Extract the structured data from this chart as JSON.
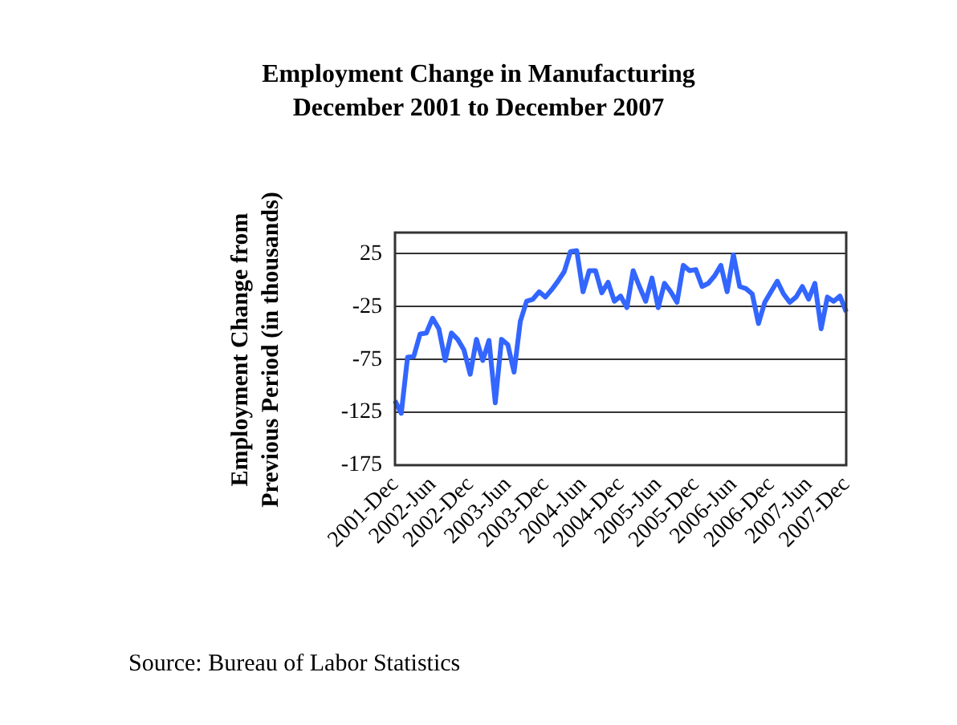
{
  "chart_data": {
    "type": "line",
    "title": "Employment Change in Manufacturing December 2001 to December 2007",
    "ylabel": "Employment Change from Previous Period (in thousands)",
    "categories": [
      "2001-Dec",
      null,
      null,
      null,
      null,
      null,
      "2002-Jun",
      null,
      null,
      null,
      null,
      null,
      "2002-Dec",
      null,
      null,
      null,
      null,
      null,
      "2003-Jun",
      null,
      null,
      null,
      null,
      null,
      "2003-Dec",
      null,
      null,
      null,
      null,
      null,
      "2004-Jun",
      null,
      null,
      null,
      null,
      null,
      "2004-Dec",
      null,
      null,
      null,
      null,
      null,
      "2005-Jun",
      null,
      null,
      null,
      null,
      null,
      "2005-Dec",
      null,
      null,
      null,
      null,
      null,
      "2006-Jun",
      null,
      null,
      null,
      null,
      null,
      "2006-Dec",
      null,
      null,
      null,
      null,
      null,
      "2007-Jun",
      null,
      null,
      null,
      null,
      null,
      "2007-Dec"
    ],
    "series": [
      {
        "color": "#3366ff",
        "values": [
          -114,
          -126,
          -73,
          -72,
          -51,
          -50,
          -36,
          -46,
          -76,
          -50,
          -56,
          -66,
          -89,
          -56,
          -76,
          -57,
          -116,
          -56,
          -61,
          -87,
          -39,
          -20,
          -18,
          -11,
          -16,
          -9,
          -1,
          8,
          27,
          28,
          -11,
          9,
          9,
          -12,
          -2,
          -20,
          -15,
          -26,
          9,
          -6,
          -20,
          2,
          -26,
          -3,
          -11,
          -21,
          14,
          9,
          10,
          -6,
          -3,
          4,
          14,
          -11,
          24,
          -6,
          -8,
          -13,
          -41,
          -21,
          -11,
          -1,
          -13,
          -21,
          -16,
          -6,
          -18,
          -3,
          -46,
          -16,
          -20,
          -15,
          -30
        ]
      }
    ],
    "ylim": [
      -175,
      45
    ],
    "yticks": [
      -175,
      -125,
      -75,
      -25,
      25
    ],
    "grid": "y",
    "legend": false,
    "marker": "none",
    "line_style": "solid",
    "annotations": [
      "Source: Bureau of Labor Statistics"
    ]
  }
}
